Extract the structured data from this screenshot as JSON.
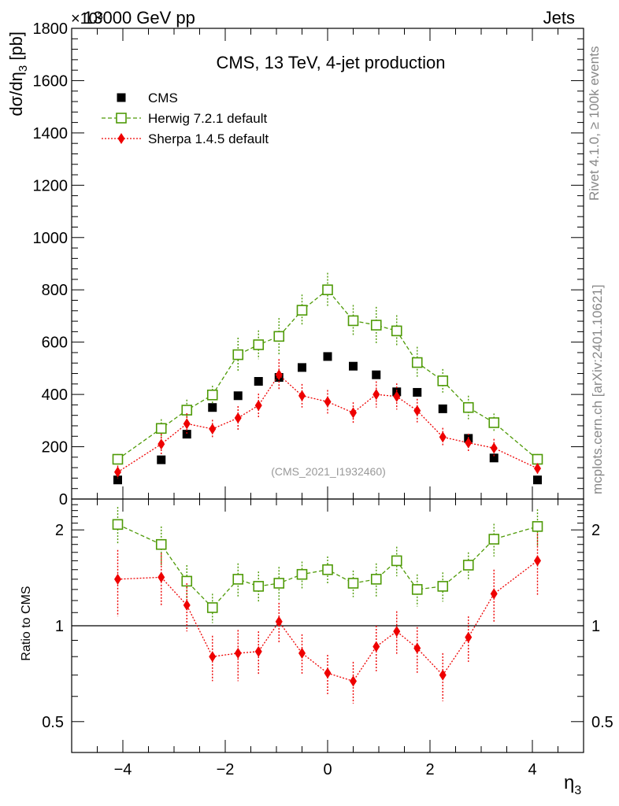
{
  "header": {
    "left": "13000 GeV pp",
    "right": "Jets",
    "exponent_label": "×10³"
  },
  "side_labels": {
    "rivet": "Rivet 4.1.0, ≥ 100k events",
    "mcplots": "mcplots.cern.ch [arXiv:2401.10621]"
  },
  "chart_data": [
    {
      "type": "scatter",
      "title": "CMS, 13 TeV, 4-jet production",
      "watermark": "(CMS_2021_I1932460)",
      "ylabel": "dσ/dη₃ [pb]",
      "ylabel_main": "dσ/dη",
      "ylabel_sub": "3",
      "ylabel_unit": " [pb]",
      "xlabel": "η₃",
      "xlabel_main": "η",
      "xlabel_sub": "3",
      "xlim": [
        -5,
        5
      ],
      "ylim": [
        0,
        1800
      ],
      "y_ticks": [
        0,
        200,
        400,
        600,
        800,
        1000,
        1200,
        1400,
        1600,
        1800
      ],
      "y_tick_labels": [
        "0",
        "200",
        "400",
        "600",
        "800",
        "1000",
        "1200",
        "1400",
        "1600",
        "1800"
      ],
      "x": [
        -4.1,
        -3.25,
        -2.75,
        -2.25,
        -1.75,
        -1.35,
        -0.95,
        -0.5,
        0.0,
        0.5,
        0.95,
        1.35,
        1.75,
        2.25,
        2.75,
        3.25,
        4.1
      ],
      "series": [
        {
          "name": "CMS",
          "color": "#000000",
          "marker": "filled-square",
          "values": [
            73,
            150,
            248,
            350,
            395,
            450,
            465,
            503,
            545,
            508,
            475,
            410,
            408,
            345,
            232,
            157,
            73
          ]
        },
        {
          "name": "Herwig 7.2.1 default",
          "color": "#4e9a06",
          "marker": "open-square",
          "line": "dashed",
          "values": [
            152,
            270,
            340,
            398,
            552,
            590,
            622,
            722,
            800,
            682,
            665,
            643,
            522,
            452,
            350,
            292,
            152
          ],
          "errors": [
            20,
            35,
            40,
            35,
            65,
            55,
            70,
            60,
            65,
            60,
            70,
            60,
            60,
            45,
            45,
            35,
            20
          ]
        },
        {
          "name": "Sherpa 1.4.5 default",
          "color": "#ee0000",
          "marker": "filled-diamond",
          "line": "dotted",
          "values": [
            103,
            210,
            288,
            268,
            310,
            358,
            475,
            395,
            372,
            330,
            400,
            392,
            338,
            237,
            215,
            195,
            117
          ],
          "errors": [
            25,
            40,
            40,
            35,
            45,
            45,
            60,
            45,
            45,
            40,
            50,
            50,
            45,
            35,
            35,
            35,
            20
          ]
        }
      ]
    },
    {
      "type": "scatter",
      "ylabel": "Ratio to CMS",
      "y_scale": "log",
      "ylim": [
        0.4,
        2.5
      ],
      "y_tick_labels": [
        "0.5",
        "1",
        "2"
      ],
      "y_tick_values": [
        0.5,
        1,
        2
      ],
      "reference": 1,
      "x_ticks": [
        -4,
        -2,
        0,
        2,
        4
      ],
      "x_tick_labels": [
        "−4",
        "−2",
        "0",
        "2",
        "4"
      ],
      "series": [
        {
          "name": "Herwig 7.2.1 default",
          "color": "#4e9a06",
          "values": [
            2.08,
            1.8,
            1.38,
            1.14,
            1.4,
            1.33,
            1.36,
            1.45,
            1.5,
            1.36,
            1.4,
            1.6,
            1.3,
            1.33,
            1.55,
            1.87,
            2.05
          ],
          "errors": [
            0.28,
            0.25,
            0.17,
            0.12,
            0.17,
            0.15,
            0.17,
            0.14,
            0.15,
            0.13,
            0.17,
            0.17,
            0.15,
            0.14,
            0.15,
            0.22,
            0.27
          ]
        },
        {
          "name": "Sherpa 1.4.5 default",
          "color": "#ee0000",
          "values": [
            1.4,
            1.42,
            1.16,
            0.8,
            0.82,
            0.83,
            1.03,
            0.82,
            0.71,
            0.67,
            0.86,
            0.96,
            0.85,
            0.7,
            0.92,
            1.26,
            1.6
          ],
          "errors": [
            0.33,
            0.27,
            0.2,
            0.13,
            0.15,
            0.13,
            0.15,
            0.12,
            0.1,
            0.1,
            0.14,
            0.15,
            0.14,
            0.12,
            0.15,
            0.24,
            0.35
          ]
        }
      ]
    }
  ]
}
